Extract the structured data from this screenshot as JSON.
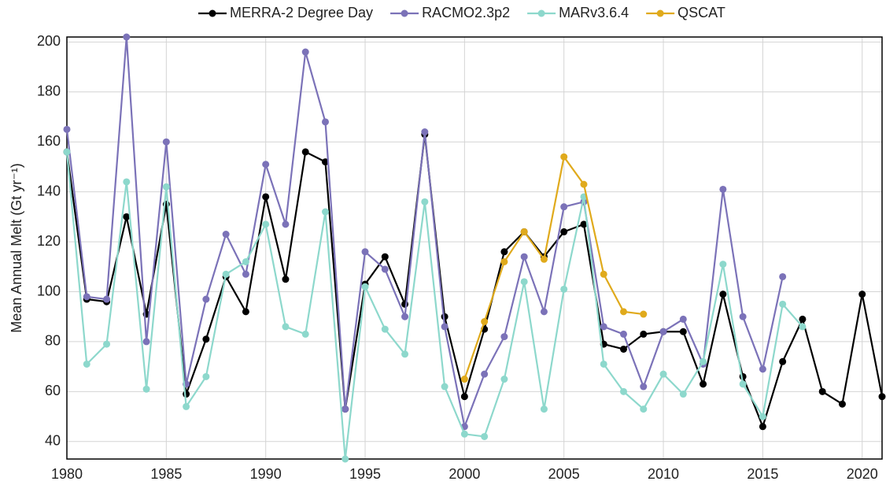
{
  "chart_data": {
    "type": "line",
    "y_label": "Mean Annual Melt (Gt yr⁻¹)",
    "x": [
      1980,
      1981,
      1982,
      1983,
      1984,
      1985,
      1986,
      1987,
      1988,
      1989,
      1990,
      1991,
      1992,
      1993,
      1994,
      1995,
      1996,
      1997,
      1998,
      1999,
      2000,
      2001,
      2002,
      2003,
      2004,
      2005,
      2006,
      2007,
      2008,
      2009,
      2010,
      2011,
      2012,
      2013,
      2014,
      2015,
      2016,
      2017,
      2018,
      2019,
      2020,
      2021
    ],
    "xlim": [
      1980,
      2021
    ],
    "xticks": [
      1980,
      1985,
      1990,
      1995,
      2000,
      2005,
      2010,
      2015,
      2020
    ],
    "ylim": [
      33,
      202
    ],
    "yticks": [
      40,
      60,
      80,
      100,
      120,
      140,
      160,
      180,
      200
    ],
    "grid": true,
    "legend": "top",
    "series": [
      {
        "name": "MERRA-2 Degree Day",
        "color": "#000000",
        "values": [
          156,
          97,
          96,
          130,
          91,
          135,
          59,
          81,
          106,
          92,
          138,
          105,
          156,
          152,
          53,
          103,
          114,
          95,
          163,
          90,
          58,
          85,
          116,
          124,
          114,
          124,
          127,
          79,
          77,
          83,
          84,
          84,
          63,
          99,
          66,
          46,
          72,
          89,
          60,
          55,
          99,
          58
        ]
      },
      {
        "name": "RACMO2.3p2",
        "color": "#7b72b8",
        "values": [
          165,
          98,
          97,
          202,
          80,
          160,
          63,
          97,
          123,
          107,
          151,
          127,
          196,
          168,
          53,
          116,
          109,
          90,
          164,
          86,
          46,
          67,
          82,
          114,
          92,
          134,
          136,
          86,
          83,
          62,
          84,
          89,
          71,
          141,
          90,
          69,
          106,
          null,
          null,
          null,
          null,
          null
        ]
      },
      {
        "name": "MARv3.6.4",
        "color": "#8dd8cc",
        "values": [
          156,
          71,
          79,
          144,
          61,
          142,
          54,
          66,
          107,
          112,
          127,
          86,
          83,
          132,
          33,
          102,
          85,
          75,
          136,
          62,
          43,
          42,
          65,
          104,
          53,
          101,
          138,
          71,
          60,
          53,
          67,
          59,
          72,
          111,
          63,
          50,
          95,
          86,
          null,
          null,
          null,
          null
        ]
      },
      {
        "name": "QSCAT",
        "color": "#e0aa1c",
        "values": [
          null,
          null,
          null,
          null,
          null,
          null,
          null,
          null,
          null,
          null,
          null,
          null,
          null,
          null,
          null,
          null,
          null,
          null,
          null,
          null,
          65,
          88,
          112,
          124,
          113,
          154,
          143,
          107,
          92,
          91,
          null,
          null,
          null,
          null,
          null,
          null,
          null,
          null,
          null,
          null,
          null,
          null
        ]
      }
    ]
  }
}
